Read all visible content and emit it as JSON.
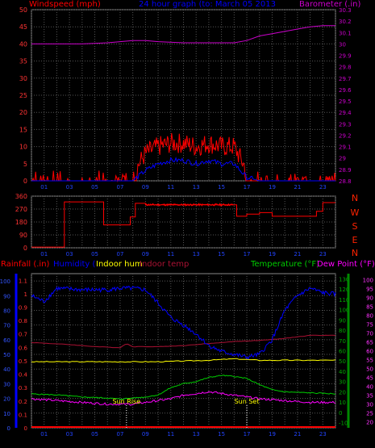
{
  "top_titles": {
    "left": "Windspeed (mph)",
    "center": "24 hour graph (to: March 05 2013",
    "right": "Barometer (.in)"
  },
  "bottom_titles": {
    "rainfall": "Rainfall (.in)",
    "humidity": "Humidity (",
    "indoor_hum": "Indoor hum",
    "indoor_temp": "Indoor temp",
    "temperature": "Temperature (°F)",
    "dew_point": "Dew Point (°F)"
  },
  "annotations": {
    "sun_rise": "Sun Rise",
    "sun_set": "Sun Set"
  },
  "colors": {
    "frame": "#888888",
    "grid": "#555555",
    "windspeed": "#ff0000",
    "gust": "#ff0000",
    "avgwind": "#0000ff",
    "barometer": "#cc00cc",
    "direction": "#ff0000",
    "rain_axis": "#0000ff",
    "humidity": "#0000ff",
    "indoor_hum": "#ffff00",
    "indoor_temp": "#aa1133",
    "temp": "#00cc00",
    "dew": "#ff00ff",
    "temp_axis": "#008800",
    "dew_axis": "#ff00ff"
  },
  "chart_data": [
    {
      "type": "line",
      "title": "24 hour graph (to: March 05 2013",
      "x_tick_labels": [
        "01",
        "03",
        "05",
        "07",
        "09",
        "11",
        "13",
        "15",
        "17",
        "19",
        "21",
        "23"
      ],
      "y_left": {
        "label": "Windspeed (mph)",
        "ticks": [
          0,
          5,
          10,
          15,
          20,
          25,
          30,
          35,
          40,
          45,
          50
        ],
        "range": [
          0,
          50
        ]
      },
      "y_right": {
        "label": "Barometer (.in)",
        "ticks": [
          28.8,
          28.9,
          29,
          29.1,
          29.2,
          29.3,
          29.4,
          29.5,
          29.6,
          29.7,
          29.8,
          29.9,
          30,
          30.1,
          30.2,
          30.3
        ],
        "range": [
          28.8,
          30.3
        ]
      },
      "series": [
        {
          "name": "Barometer (.in)",
          "axis": "right",
          "x": [
            0,
            2,
            4,
            6,
            8,
            9,
            10,
            12,
            14,
            16,
            17,
            18,
            19,
            20,
            21,
            22,
            23,
            24
          ],
          "values": [
            30.0,
            30.0,
            30.0,
            30.01,
            30.03,
            30.03,
            30.02,
            30.01,
            30.01,
            30.01,
            30.03,
            30.07,
            30.09,
            30.11,
            30.13,
            30.15,
            30.16,
            30.16
          ]
        },
        {
          "name": "Windspeed",
          "axis": "left",
          "x": [
            0,
            1,
            2,
            3,
            4,
            5,
            6,
            7,
            8,
            9,
            10,
            11,
            12,
            13,
            14,
            15,
            16,
            17,
            18,
            19,
            20,
            21,
            22,
            23,
            24
          ],
          "values": [
            1,
            1,
            0,
            0,
            1,
            1,
            1,
            1,
            2,
            8,
            10,
            11,
            11,
            10,
            11,
            10,
            10,
            3,
            1,
            1,
            1,
            1,
            1,
            1,
            1
          ]
        },
        {
          "name": "Average wind",
          "axis": "left",
          "x": [
            0,
            8,
            9,
            10,
            11,
            12,
            13,
            14,
            15,
            16,
            17,
            18,
            24
          ],
          "values": [
            0,
            0,
            3,
            5,
            6,
            6,
            5,
            6,
            5,
            5,
            1,
            0,
            0
          ]
        }
      ]
    },
    {
      "type": "line",
      "y_left": {
        "ticks": [
          0,
          90,
          180,
          270,
          360
        ],
        "range": [
          0,
          360
        ]
      },
      "y_right_labels": [
        "N",
        "W",
        "S",
        "E",
        "N"
      ],
      "x_tick_labels": [
        "01",
        "03",
        "05",
        "07",
        "09",
        "11",
        "13",
        "15",
        "17",
        "19",
        "21",
        "23"
      ],
      "series": [
        {
          "name": "Wind direction",
          "step": true,
          "x": [
            0,
            2.5,
            2.6,
            4.5,
            5.7,
            6.5,
            7.8,
            8.2,
            9.0,
            16.0,
            16.2,
            17.0,
            18.0,
            19.0,
            21.0,
            21.5,
            22.5,
            23.0,
            24.0
          ],
          "values": [
            5,
            5,
            320,
            320,
            160,
            160,
            215,
            310,
            300,
            300,
            220,
            235,
            245,
            220,
            220,
            220,
            255,
            315,
            315
          ]
        }
      ]
    },
    {
      "type": "line",
      "y_left": {
        "label": "Rainfall (.in)",
        "ticks": [
          0,
          0.1,
          0.2,
          0.3,
          0.4,
          0.5,
          0.6,
          0.7,
          0.8,
          0.9,
          1,
          1.1
        ],
        "range": [
          0,
          1.15
        ]
      },
      "y_humidity": {
        "label": "Humidity (",
        "ticks": [
          0,
          10,
          20,
          30,
          40,
          50,
          60,
          70,
          80,
          90,
          100
        ],
        "range": [
          0,
          105
        ]
      },
      "y_temperature": {
        "label": "Temperature (°F)",
        "ticks": [
          -10,
          0,
          10,
          20,
          30,
          40,
          50,
          60,
          70,
          80,
          90,
          100,
          110,
          120,
          130
        ],
        "range": [
          -15,
          135
        ]
      },
      "y_dewpoint": {
        "label": "Dew Point (°F)",
        "ticks": [
          20,
          25,
          30,
          35,
          40,
          45,
          50,
          55,
          60,
          65,
          70,
          75,
          80,
          85,
          90,
          95,
          100
        ],
        "range": [
          16.7,
          103.3
        ]
      },
      "x_tick_labels": [
        "01",
        "03",
        "05",
        "07",
        "09",
        "11",
        "13",
        "15",
        "17",
        "19",
        "21",
        "23"
      ],
      "series": [
        {
          "name": "Humidity",
          "x": [
            0,
            1,
            2,
            4,
            6,
            7,
            8,
            9,
            10,
            11,
            12,
            13,
            14,
            15,
            16,
            17,
            18,
            19,
            20,
            21,
            22,
            23,
            24
          ],
          "values": [
            90,
            86,
            95,
            94,
            94,
            95,
            95,
            94,
            85,
            75,
            70,
            64,
            56,
            52,
            50,
            48,
            50,
            60,
            80,
            90,
            95,
            92,
            91
          ]
        },
        {
          "name": "Indoor hum",
          "x": [
            0,
            8,
            10,
            14,
            16,
            18,
            24
          ],
          "values": [
            45,
            45,
            45,
            46,
            47,
            46,
            46
          ]
        },
        {
          "name": "Indoor temp",
          "x": [
            0,
            3,
            5,
            7,
            7.5,
            8,
            10,
            12,
            14,
            16,
            18,
            20,
            22,
            24
          ],
          "values": [
            68,
            66,
            64,
            63,
            67,
            64,
            64,
            65,
            67,
            69,
            70,
            72,
            75,
            75
          ]
        },
        {
          "name": "Temperature",
          "x": [
            0,
            2,
            4,
            6,
            7,
            8,
            9,
            10,
            11,
            12,
            13,
            14,
            15,
            16,
            17,
            18,
            19,
            20,
            22,
            24
          ],
          "values": [
            18,
            17,
            15,
            14,
            13,
            14,
            15,
            17,
            24,
            28,
            30,
            34,
            36,
            35,
            33,
            27,
            22,
            20,
            19,
            18
          ]
        },
        {
          "name": "Dew Point",
          "x": [
            0,
            2,
            4,
            6,
            8,
            9,
            10,
            11,
            12,
            13,
            14,
            15,
            16,
            17,
            18,
            20,
            22,
            24
          ],
          "values": [
            33,
            32,
            31,
            30,
            30,
            31,
            32,
            33,
            35,
            36,
            37,
            36,
            35,
            34,
            33,
            32,
            31,
            31
          ]
        },
        {
          "name": "Rainfall",
          "x": [
            0,
            24
          ],
          "values": [
            0,
            0
          ]
        }
      ],
      "markers": [
        {
          "label": "Sun Rise",
          "x": 7.5
        },
        {
          "label": "Sun Set",
          "x": 17.0
        }
      ]
    }
  ]
}
